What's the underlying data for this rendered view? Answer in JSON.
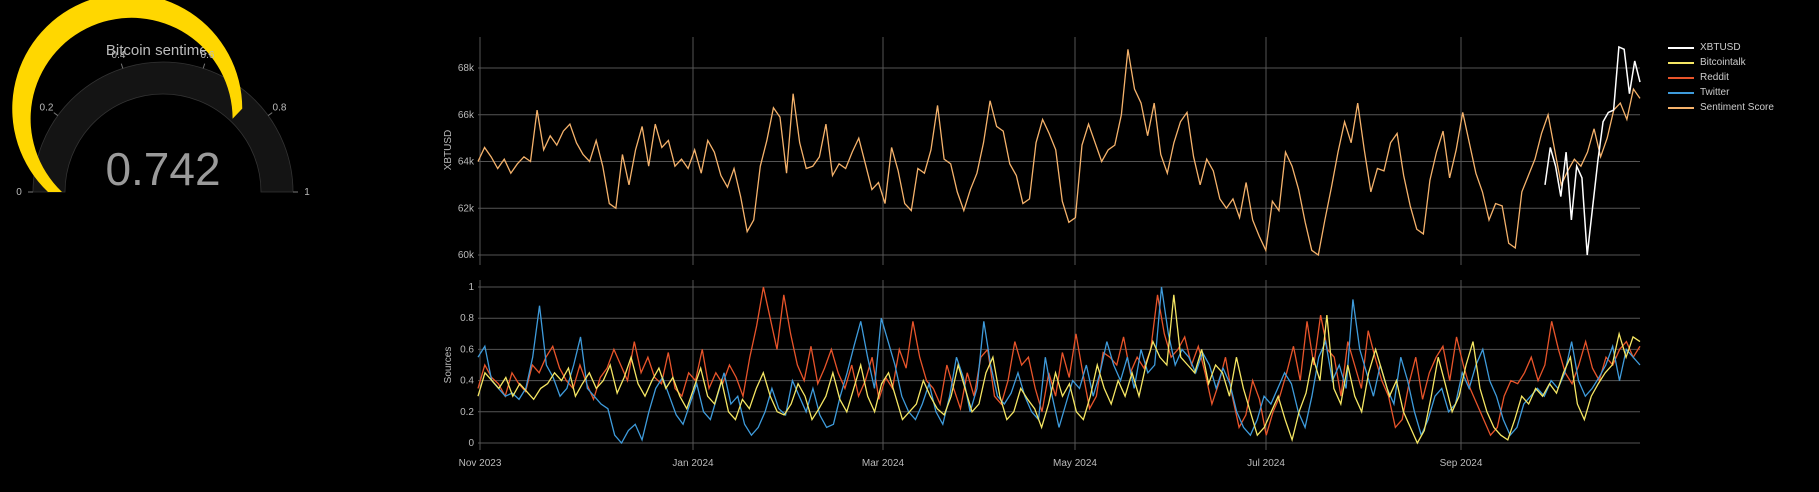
{
  "gauge": {
    "title": "Bitcoin sentiment",
    "value": "0.742",
    "value_num": 0.742,
    "min": 0,
    "max": 1,
    "ticks": [
      "0",
      "0.2",
      "0.4",
      "0.6",
      "0.8",
      "1"
    ],
    "bar_color": "#FFD700",
    "track_color": "#1a1a1a"
  },
  "legend": {
    "items": [
      {
        "label": "XBTUSD",
        "color": "#FFFFFF"
      },
      {
        "label": "Bitcointalk",
        "color": "#F5E663"
      },
      {
        "label": "Reddit",
        "color": "#E8542A"
      },
      {
        "label": "Twitter",
        "color": "#3E9BDB"
      },
      {
        "label": "Sentiment Score",
        "color": "#F5B26B"
      }
    ]
  },
  "chart_data": [
    {
      "type": "line",
      "title": "",
      "ylabel": "XBTUSD",
      "yticks": [
        "60k",
        "62k",
        "64k",
        "66k",
        "68k"
      ],
      "ylim": [
        59500,
        69300
      ],
      "xticks": [
        "Nov 2023",
        "Jan 2024",
        "Mar 2024",
        "May 2024",
        "Jul 2024",
        "Sep 2024"
      ],
      "grid": true,
      "series": [
        {
          "name": "Sentiment Score",
          "color": "#F5B26B",
          "points": [
            64000,
            64600,
            64200,
            63700,
            64100,
            63500,
            63900,
            64200,
            64000,
            66200,
            64500,
            65100,
            64700,
            65300,
            65600,
            64800,
            64300,
            64000,
            64900,
            63800,
            62200,
            62000,
            64300,
            63000,
            64500,
            65500,
            63800,
            65600,
            64600,
            64900,
            63800,
            64100,
            63700,
            64500,
            63500,
            64900,
            64400,
            63400,
            62900,
            63700,
            62500,
            61000,
            61500,
            63800,
            64900,
            66300,
            65900,
            63500,
            66900,
            64800,
            63700,
            63800,
            64200,
            65600,
            63400,
            63900,
            63700,
            64400,
            65000,
            63900,
            62800,
            63100,
            62200,
            64600,
            63600,
            62200,
            61900,
            63700,
            63500,
            64500,
            66400,
            64100,
            63900,
            62700,
            61900,
            62800,
            63500,
            64800,
            66600,
            65500,
            65300,
            63900,
            63400,
            62200,
            62400,
            64800,
            65800,
            65200,
            64500,
            62300,
            61400,
            61600,
            64700,
            65600,
            64800,
            64000,
            64500,
            64700,
            66000,
            68800,
            67100,
            66500,
            65100,
            66500,
            64300,
            63500,
            64800,
            65700,
            66100,
            64200,
            63000,
            64100,
            63600,
            62400,
            62000,
            62400,
            61600,
            63100,
            61500,
            60800,
            60200,
            62300,
            61900,
            64400,
            63800,
            62800,
            61400,
            60200,
            60000,
            61500,
            62900,
            64400,
            65700,
            64800,
            66500,
            64500,
            62700,
            63700,
            63600,
            64800,
            65200,
            63400,
            62100,
            61100,
            60900,
            63200,
            64400,
            65300,
            63300,
            64500,
            66100,
            64800,
            63500,
            62700,
            61500,
            62200,
            62100,
            60500,
            60300,
            62700,
            63400,
            64100,
            65200,
            66000,
            64500,
            63000,
            63600,
            64100,
            63800,
            64400,
            65400,
            64200,
            65000,
            66200,
            66500,
            65800,
            67100,
            66700
          ]
        },
        {
          "name": "XBTUSD",
          "color": "#FFFFFF",
          "points": [
            63000,
            64600,
            63800,
            62500,
            64400,
            61500,
            63800,
            63300,
            60000,
            62000,
            64000,
            65700,
            66100,
            66200,
            68900,
            68800,
            66900,
            68300,
            67400
          ]
        }
      ]
    },
    {
      "type": "line",
      "title": "",
      "ylabel": "Sources",
      "yticks": [
        "0",
        "0.2",
        "0.4",
        "0.6",
        "0.8",
        "1"
      ],
      "ylim": [
        -0.05,
        1.05
      ],
      "xticks": [
        "Nov 2023",
        "Jan 2024",
        "Mar 2024",
        "May 2024",
        "Jul 2024",
        "Sep 2024"
      ],
      "grid": true,
      "series": [
        {
          "name": "Reddit",
          "color": "#E8542A",
          "points": [
            0.35,
            0.5,
            0.42,
            0.38,
            0.3,
            0.45,
            0.38,
            0.33,
            0.5,
            0.45,
            0.55,
            0.62,
            0.48,
            0.4,
            0.35,
            0.5,
            0.38,
            0.28,
            0.42,
            0.48,
            0.6,
            0.5,
            0.4,
            0.65,
            0.45,
            0.55,
            0.42,
            0.38,
            0.58,
            0.35,
            0.3,
            0.45,
            0.4,
            0.6,
            0.35,
            0.45,
            0.38,
            0.5,
            0.42,
            0.3,
            0.55,
            0.75,
            1.0,
            0.8,
            0.6,
            0.95,
            0.7,
            0.5,
            0.4,
            0.62,
            0.38,
            0.48,
            0.6,
            0.45,
            0.35,
            0.5,
            0.3,
            0.4,
            0.55,
            0.28,
            0.42,
            0.35,
            0.6,
            0.48,
            0.78,
            0.55,
            0.4,
            0.35,
            0.25,
            0.5,
            0.35,
            0.22,
            0.45,
            0.3,
            0.55,
            0.6,
            0.3,
            0.25,
            0.4,
            0.65,
            0.5,
            0.55,
            0.35,
            0.2,
            0.45,
            0.3,
            0.58,
            0.42,
            0.7,
            0.45,
            0.22,
            0.3,
            0.58,
            0.55,
            0.5,
            0.68,
            0.45,
            0.55,
            0.48,
            0.6,
            0.95,
            0.7,
            0.55,
            0.6,
            0.68,
            0.5,
            0.62,
            0.45,
            0.25,
            0.38,
            0.55,
            0.3,
            0.1,
            0.18,
            0.4,
            0.28,
            0.05,
            0.2,
            0.3,
            0.45,
            0.62,
            0.4,
            0.78,
            0.5,
            0.82,
            0.6,
            0.55,
            0.3,
            0.65,
            0.5,
            0.35,
            0.72,
            0.55,
            0.4,
            0.3,
            0.1,
            0.15,
            0.38,
            0.55,
            0.28,
            0.45,
            0.55,
            0.62,
            0.4,
            0.68,
            0.5,
            0.35,
            0.25,
            0.15,
            0.05,
            0.1,
            0.3,
            0.4,
            0.38,
            0.45,
            0.55,
            0.4,
            0.5,
            0.78,
            0.6,
            0.45,
            0.38,
            0.5,
            0.65,
            0.48,
            0.4,
            0.55,
            0.5,
            0.6,
            0.65,
            0.55,
            0.62
          ]
        },
        {
          "name": "Twitter",
          "color": "#3E9BDB",
          "points": [
            0.55,
            0.62,
            0.4,
            0.35,
            0.3,
            0.32,
            0.28,
            0.35,
            0.55,
            0.88,
            0.5,
            0.42,
            0.3,
            0.35,
            0.5,
            0.68,
            0.35,
            0.3,
            0.25,
            0.22,
            0.05,
            0.0,
            0.08,
            0.12,
            0.02,
            0.2,
            0.35,
            0.42,
            0.3,
            0.18,
            0.12,
            0.25,
            0.38,
            0.2,
            0.15,
            0.3,
            0.45,
            0.25,
            0.3,
            0.12,
            0.05,
            0.1,
            0.2,
            0.35,
            0.22,
            0.18,
            0.4,
            0.3,
            0.2,
            0.35,
            0.18,
            0.1,
            0.12,
            0.3,
            0.45,
            0.62,
            0.78,
            0.55,
            0.35,
            0.8,
            0.65,
            0.5,
            0.3,
            0.2,
            0.15,
            0.25,
            0.38,
            0.2,
            0.12,
            0.3,
            0.55,
            0.42,
            0.2,
            0.35,
            0.78,
            0.5,
            0.3,
            0.25,
            0.32,
            0.45,
            0.3,
            0.2,
            0.15,
            0.55,
            0.3,
            0.1,
            0.25,
            0.4,
            0.35,
            0.5,
            0.3,
            0.45,
            0.65,
            0.5,
            0.4,
            0.55,
            0.35,
            0.6,
            0.45,
            0.5,
            1.0,
            0.7,
            0.5,
            0.6,
            0.55,
            0.45,
            0.58,
            0.5,
            0.35,
            0.48,
            0.38,
            0.2,
            0.1,
            0.05,
            0.15,
            0.3,
            0.25,
            0.35,
            0.45,
            0.38,
            0.2,
            0.1,
            0.3,
            0.55,
            0.65,
            0.4,
            0.5,
            0.35,
            0.92,
            0.6,
            0.45,
            0.3,
            0.5,
            0.35,
            0.25,
            0.55,
            0.4,
            0.2,
            0.05,
            0.15,
            0.3,
            0.35,
            0.2,
            0.25,
            0.45,
            0.35,
            0.5,
            0.6,
            0.4,
            0.3,
            0.15,
            0.05,
            0.1,
            0.25,
            0.3,
            0.35,
            0.3,
            0.4,
            0.35,
            0.45,
            0.65,
            0.4,
            0.3,
            0.35,
            0.42,
            0.5,
            0.62,
            0.4,
            0.6,
            0.55,
            0.5
          ]
        },
        {
          "name": "Bitcointalk",
          "color": "#F5E663",
          "points": [
            0.3,
            0.45,
            0.4,
            0.35,
            0.42,
            0.3,
            0.38,
            0.33,
            0.28,
            0.35,
            0.38,
            0.45,
            0.4,
            0.48,
            0.3,
            0.38,
            0.45,
            0.35,
            0.4,
            0.5,
            0.32,
            0.42,
            0.55,
            0.38,
            0.3,
            0.4,
            0.48,
            0.35,
            0.42,
            0.3,
            0.22,
            0.35,
            0.48,
            0.3,
            0.25,
            0.4,
            0.2,
            0.15,
            0.28,
            0.22,
            0.35,
            0.45,
            0.3,
            0.2,
            0.18,
            0.25,
            0.38,
            0.3,
            0.15,
            0.22,
            0.3,
            0.45,
            0.28,
            0.2,
            0.35,
            0.5,
            0.3,
            0.2,
            0.38,
            0.45,
            0.3,
            0.15,
            0.2,
            0.25,
            0.4,
            0.3,
            0.22,
            0.18,
            0.3,
            0.5,
            0.35,
            0.2,
            0.25,
            0.45,
            0.55,
            0.3,
            0.15,
            0.2,
            0.35,
            0.28,
            0.22,
            0.1,
            0.25,
            0.45,
            0.3,
            0.38,
            0.2,
            0.15,
            0.3,
            0.5,
            0.35,
            0.25,
            0.4,
            0.3,
            0.45,
            0.3,
            0.5,
            0.65,
            0.55,
            0.5,
            0.95,
            0.55,
            0.5,
            0.45,
            0.6,
            0.38,
            0.5,
            0.45,
            0.3,
            0.55,
            0.35,
            0.2,
            0.05,
            0.1,
            0.2,
            0.3,
            0.15,
            0.02,
            0.2,
            0.32,
            0.55,
            0.4,
            0.82,
            0.35,
            0.25,
            0.5,
            0.3,
            0.2,
            0.45,
            0.6,
            0.45,
            0.3,
            0.4,
            0.2,
            0.1,
            0.0,
            0.08,
            0.3,
            0.55,
            0.38,
            0.2,
            0.3,
            0.5,
            0.65,
            0.35,
            0.2,
            0.1,
            0.05,
            0.02,
            0.15,
            0.3,
            0.25,
            0.35,
            0.3,
            0.38,
            0.32,
            0.45,
            0.55,
            0.25,
            0.15,
            0.3,
            0.38,
            0.45,
            0.5,
            0.7,
            0.55,
            0.68,
            0.65
          ]
        }
      ]
    }
  ]
}
